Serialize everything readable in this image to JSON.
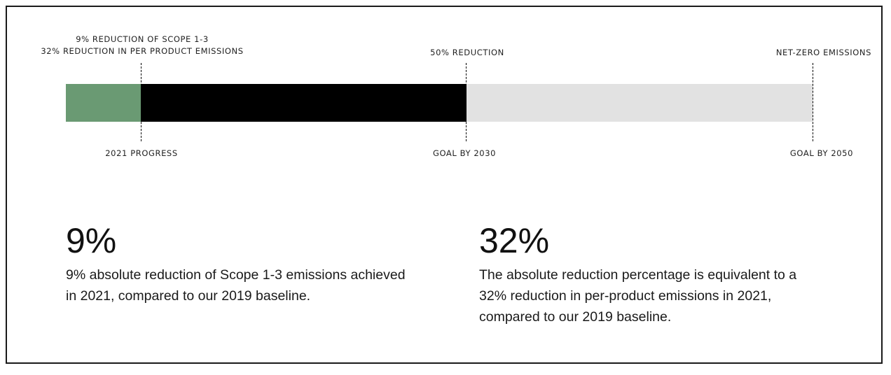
{
  "timeline": {
    "top_labels": {
      "progress_line1": "9% REDUCTION OF SCOPE 1-3",
      "progress_line2": "32% REDUCTION IN PER PRODUCT EMISSIONS",
      "goal_2030": "50% REDUCTION",
      "goal_2050": "NET-ZERO EMISSIONS"
    },
    "bottom_labels": {
      "progress": "2021 PROGRESS",
      "goal_2030": "GOAL BY 2030",
      "goal_2050": "GOAL BY 2050"
    },
    "colors": {
      "progress_segment": "#6a9a73",
      "goal_2030_segment": "#000000",
      "goal_2050_segment": "#e2e2e2"
    }
  },
  "stats": [
    {
      "value": "9%",
      "description": "9% absolute reduction of Scope 1-3 emissions achieved in 2021, compared to our 2019 baseline."
    },
    {
      "value": "32%",
      "description": "The absolute reduction percentage is equivalent to a 32% reduction in per-product emissions in 2021, compared to our 2019 baseline."
    }
  ]
}
